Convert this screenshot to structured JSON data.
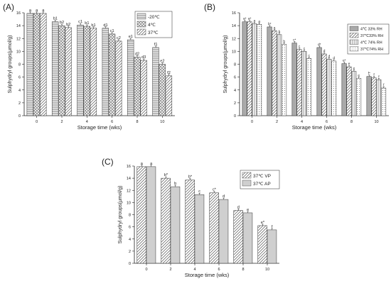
{
  "colors": {
    "axis": "#222222",
    "bar_stroke": "#333333",
    "fill_light": "#e8e8e8",
    "fill_mid": "#cfcfcf",
    "fill_dark": "#a9a9a9",
    "fill_white": "#ffffff"
  },
  "chart_data": [
    {
      "type": "bar",
      "panel_label": "(A)",
      "xlabel": "Storage time (wks)",
      "ylabel": "Sulphydryl groups(μmol/g)",
      "categories": [
        "0",
        "2",
        "4",
        "6",
        "8",
        "10"
      ],
      "ylim": [
        0,
        16
      ],
      "yticks": [
        0,
        2,
        4,
        6,
        8,
        10,
        12,
        14,
        16
      ],
      "legend_position": "top-right",
      "series": [
        {
          "name": "-20℃",
          "values": [
            15.9,
            14.6,
            14.1,
            13.6,
            11.8,
            10.6
          ],
          "labels": [
            "a",
            "b1",
            "c1",
            "d1",
            "e1",
            "f1"
          ],
          "pattern": "hlines"
        },
        {
          "name": "4℃",
          "values": [
            15.9,
            14.0,
            13.9,
            12.7,
            9.1,
            8.0
          ],
          "labels": [
            "a",
            "b2",
            "b1",
            "c1",
            "d2",
            "e2"
          ],
          "pattern": "cross"
        },
        {
          "name": "37℃",
          "values": [
            15.9,
            13.7,
            13.6,
            11.6,
            8.6,
            6.2
          ],
          "labels": [
            "a",
            "b2",
            "b1",
            "c2",
            "d3",
            "f2"
          ],
          "pattern": "diag"
        }
      ]
    },
    {
      "type": "bar",
      "panel_label": "(B)",
      "xlabel": "Storage time (wks)",
      "ylabel": "Sulphydryl groups(μmol/g)",
      "categories": [
        "0",
        "2",
        "4",
        "6",
        "8",
        "10"
      ],
      "ylim": [
        0,
        16
      ],
      "yticks": [
        0,
        2,
        4,
        6,
        8,
        10,
        12,
        14,
        16
      ],
      "legend_position": "top-right",
      "series": [
        {
          "name": "4℃ 33% RH",
          "values": [
            14.6,
            13.8,
            11.3,
            10.6,
            8.1,
            6.1
          ],
          "labels": [
            "a*",
            "b*",
            "c*",
            "d*",
            "e*",
            "f*"
          ],
          "pattern": "dark"
        },
        {
          "name": "37℃33% RH",
          "values": [
            14.6,
            13.2,
            10.3,
            9.6,
            7.6,
            5.9
          ],
          "labels": [
            "a*",
            "a",
            "c",
            "d",
            "e",
            "f"
          ],
          "pattern": "diag"
        },
        {
          "name": "4℃ 74% RH",
          "values": [
            14.3,
            12.6,
            10.0,
            8.8,
            6.9,
            5.6
          ],
          "labels": [
            "a",
            "b",
            "c",
            "d",
            "e",
            "f"
          ],
          "pattern": "vlines"
        },
        {
          "name": "37℃74% RH",
          "values": [
            14.2,
            11.1,
            8.9,
            8.5,
            5.8,
            4.3
          ],
          "labels": [
            "a",
            "b",
            "c",
            "d",
            "e",
            "f"
          ],
          "pattern": "dots"
        }
      ]
    },
    {
      "type": "bar",
      "panel_label": "(C)",
      "xlabel": "Storage time (wks)",
      "ylabel": "Sulphydryl groups(μmol/g)",
      "categories": [
        "0",
        "2",
        "4",
        "6",
        "8",
        "10"
      ],
      "ylim": [
        0,
        16
      ],
      "yticks": [
        0,
        2,
        4,
        6,
        8,
        10,
        12,
        14,
        16
      ],
      "legend_position": "top-right",
      "series": [
        {
          "name": "37℃ VP",
          "values": [
            15.9,
            14.0,
            13.7,
            11.6,
            8.7,
            6.2
          ],
          "labels": [
            "a",
            "b*",
            "b*",
            "c*",
            "d",
            "e*"
          ],
          "pattern": "diag"
        },
        {
          "name": "37℃ AP",
          "values": [
            15.9,
            12.6,
            11.3,
            10.5,
            8.3,
            5.5
          ],
          "labels": [
            "a",
            "b",
            "c",
            "d",
            "e",
            "f"
          ],
          "pattern": "grey"
        }
      ]
    }
  ]
}
